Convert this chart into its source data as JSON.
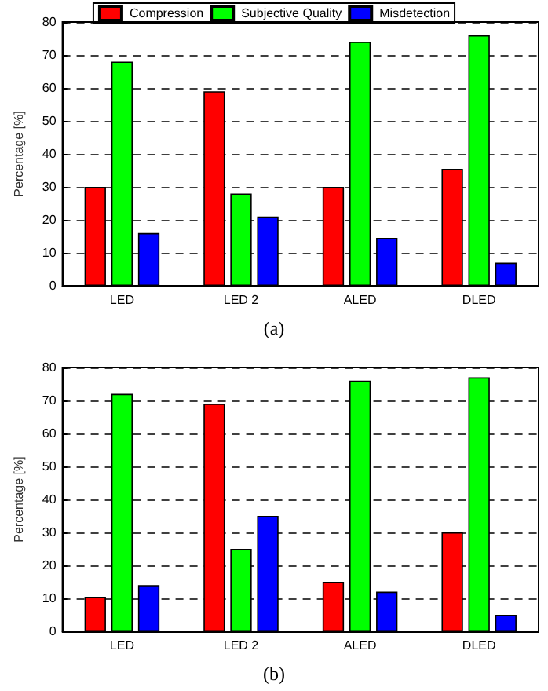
{
  "chart_data": [
    {
      "type": "bar",
      "categories": [
        "LED",
        "LED 2",
        "ALED",
        "DLED"
      ],
      "ylabel": "Percentage [%]",
      "ylim": [
        0,
        80
      ],
      "yticks": [
        0,
        10,
        20,
        30,
        40,
        50,
        60,
        70,
        80
      ],
      "grid": "y",
      "legend": "top",
      "annotations": [
        "(a)"
      ],
      "series": [
        {
          "name": "Compression",
          "color": "#ff0000",
          "values": [
            30,
            59,
            30,
            35.5
          ]
        },
        {
          "name": "Subjective Quality",
          "color": "#00ff00",
          "values": [
            68,
            28,
            74,
            76
          ]
        },
        {
          "name": "Misdetection",
          "color": "#0000ff",
          "values": [
            16,
            21,
            14.5,
            7
          ]
        }
      ]
    },
    {
      "type": "bar",
      "categories": [
        "LED",
        "LED 2",
        "ALED",
        "DLED"
      ],
      "ylabel": "Percentage [%]",
      "ylim": [
        0,
        80
      ],
      "yticks": [
        0,
        10,
        20,
        30,
        40,
        50,
        60,
        70,
        80
      ],
      "grid": "y",
      "legend": false,
      "annotations": [
        "(b)"
      ],
      "series": [
        {
          "color": "#ff0000",
          "values": [
            10.5,
            69,
            15,
            30
          ]
        },
        {
          "color": "#00ff00",
          "values": [
            72,
            25,
            76,
            77
          ]
        },
        {
          "color": "#0000ff",
          "values": [
            14,
            35,
            12,
            5
          ]
        }
      ]
    }
  ]
}
